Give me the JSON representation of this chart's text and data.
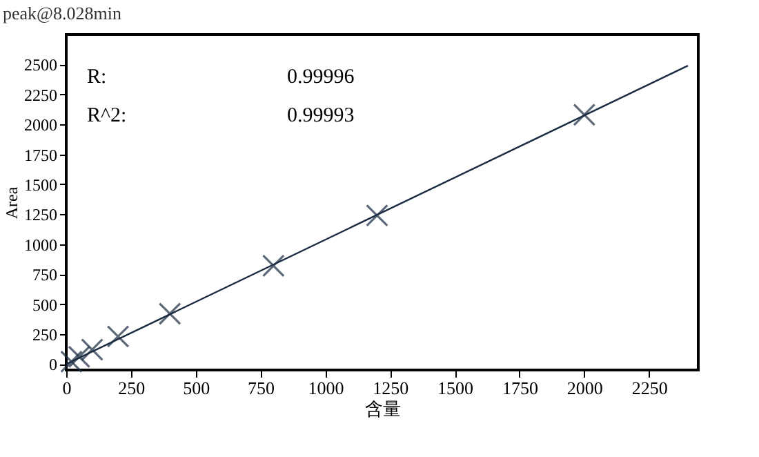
{
  "chart_data": {
    "type": "scatter",
    "title": "peak@8.028min",
    "xlabel": "含量",
    "ylabel": "Area",
    "x": [
      20,
      50,
      100,
      200,
      400,
      800,
      1200,
      2000
    ],
    "series": [
      {
        "color": "#1a2a40",
        "marker": "cross",
        "values": [
          20,
          60,
          120,
          230,
          420,
          820,
          1240,
          2080
        ]
      },
      {
        "type": "line",
        "color": "#1a2a40",
        "x": [
          0,
          2400
        ],
        "values": [
          0,
          2490
        ]
      }
    ],
    "annotations": [
      "R:",
      "0.99996",
      "R^2:",
      "0.99993"
    ],
    "xlim": [
      0,
      2440
    ],
    "ylim": [
      -50,
      2750
    ],
    "xticks": [
      0,
      250,
      500,
      750,
      1000,
      1250,
      1500,
      1750,
      2000,
      2250
    ],
    "yticks": [
      0,
      250,
      500,
      750,
      1000,
      1250,
      1500,
      1750,
      2000,
      2250,
      2500
    ],
    "grid": false
  }
}
